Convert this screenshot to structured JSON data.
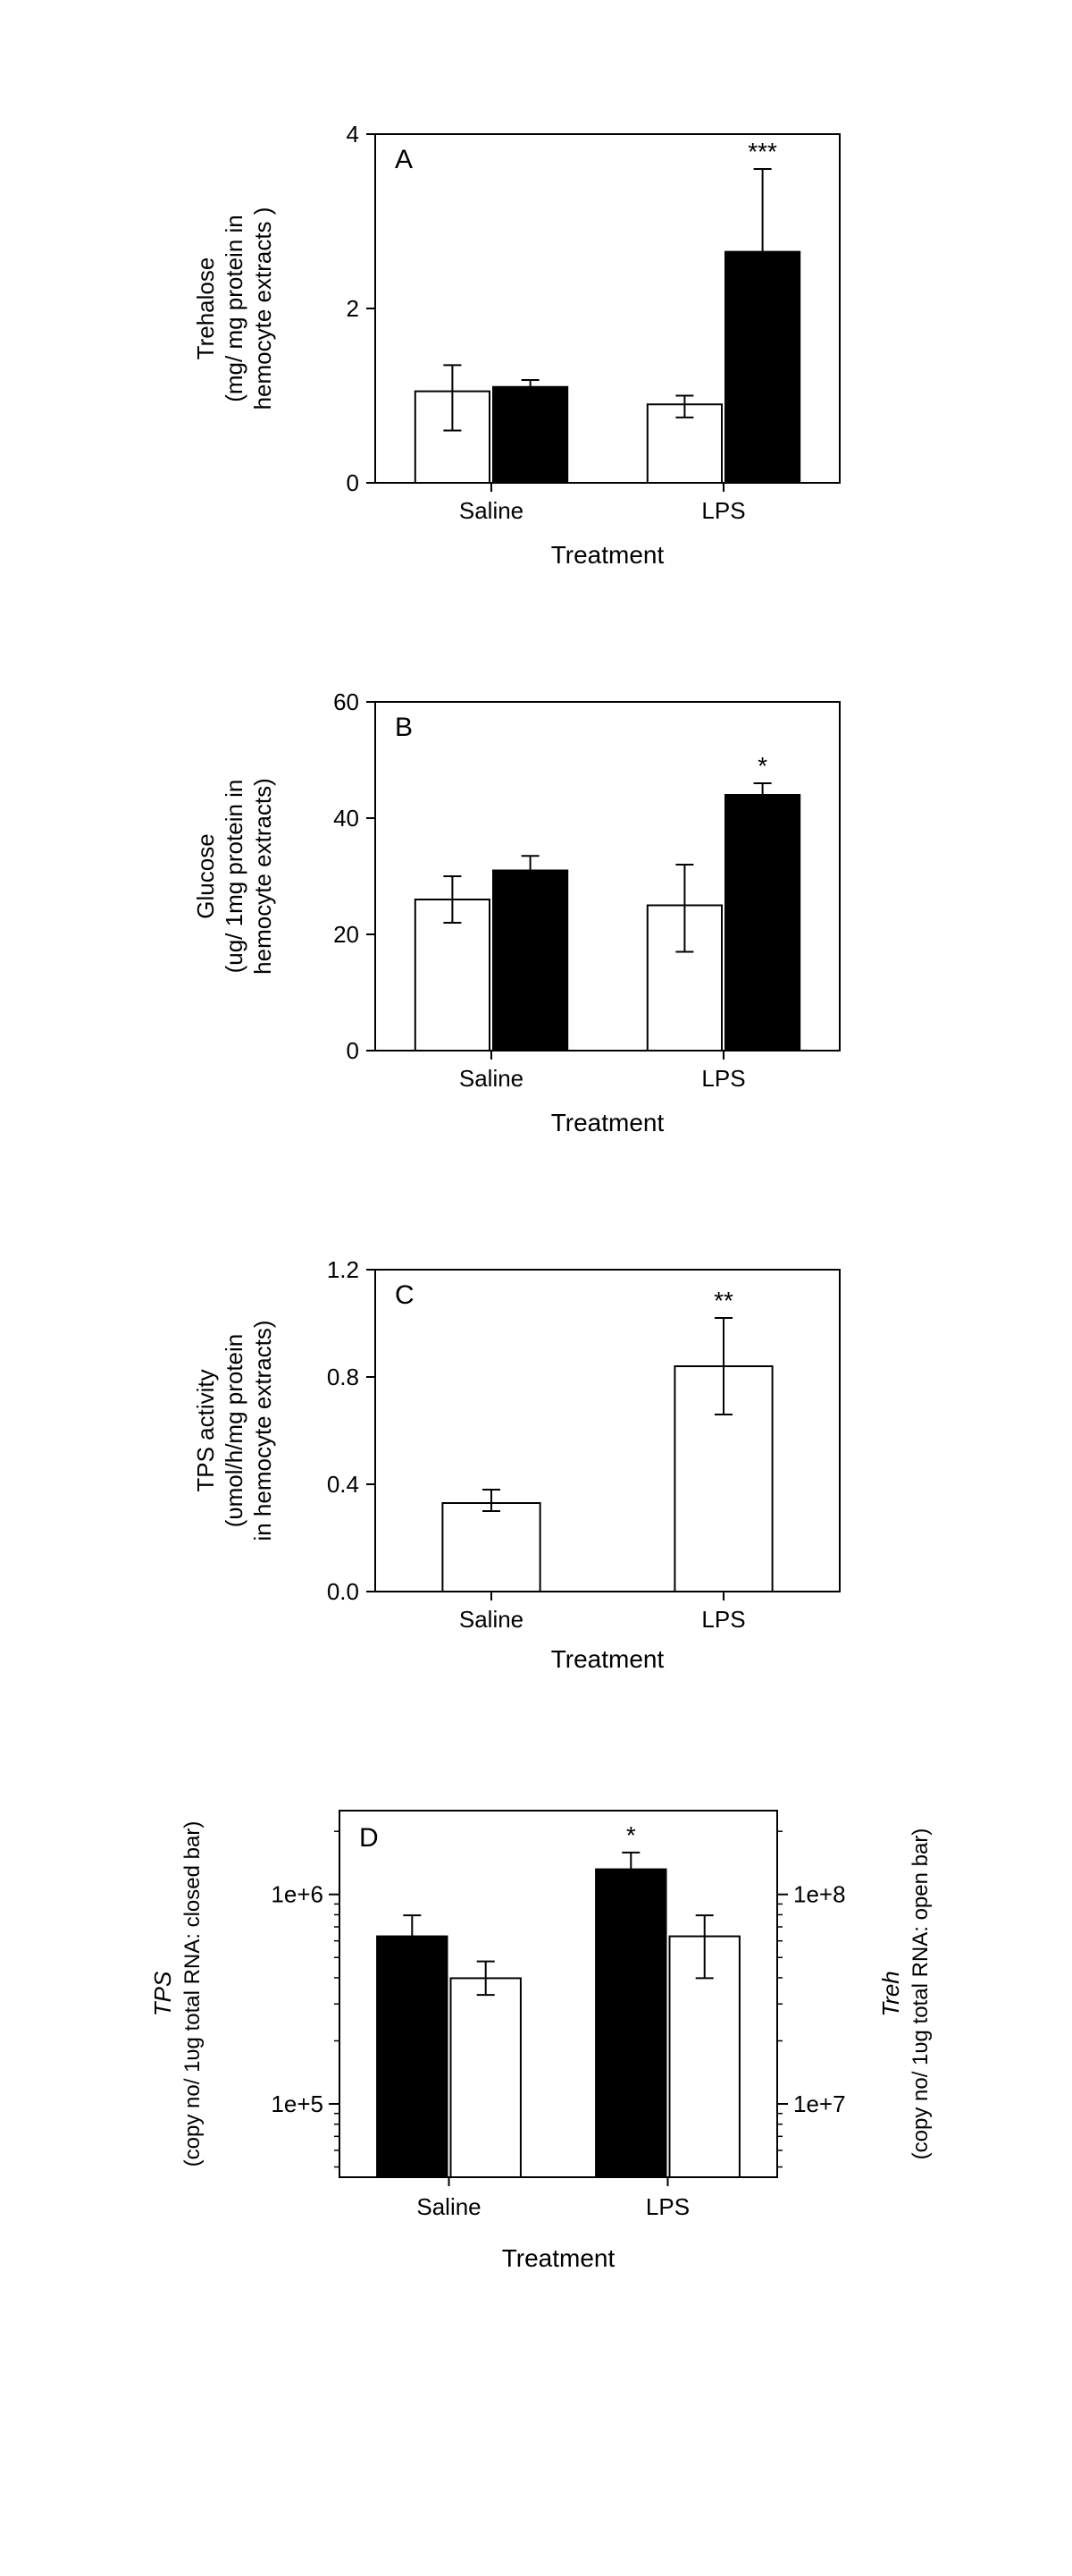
{
  "global": {
    "background": "#ffffff",
    "axis_color": "#000000",
    "font_family": "Arial, Helvetica, sans-serif",
    "xaxis_title": "Treatment",
    "categories": [
      "Saline",
      "LPS"
    ]
  },
  "panelA": {
    "letter": "A",
    "ylabel_line1": "Trehalose",
    "ylabel_line2": "(mg/ mg protein in",
    "ylabel_line3": "hemocyte extracts )",
    "ylim": [
      0,
      4
    ],
    "yticks": [
      0,
      2,
      4
    ],
    "bar_fill_open": "#ffffff",
    "bar_fill_closed": "#000000",
    "bar_border": "#000000",
    "bar_width": 0.32,
    "groups": [
      {
        "cat": "Saline",
        "open": {
          "v": 1.05,
          "err_lo": 0.45,
          "err_hi": 0.3
        },
        "closed": {
          "v": 1.1,
          "err_lo": 0.0,
          "err_hi": 0.08
        }
      },
      {
        "cat": "LPS",
        "open": {
          "v": 0.9,
          "err_lo": 0.15,
          "err_hi": 0.1
        },
        "closed": {
          "v": 2.65,
          "err_lo": 0.0,
          "err_hi": 0.95,
          "sig": "***"
        }
      }
    ],
    "labelfont": 26,
    "letterfont": 30
  },
  "panelB": {
    "letter": "B",
    "ylabel_line1": "Glucose",
    "ylabel_line2": "(ug/ 1mg protein in",
    "ylabel_line3": "hemocyte extracts)",
    "ylim": [
      0,
      60
    ],
    "yticks": [
      0,
      20,
      40,
      60
    ],
    "bar_fill_open": "#ffffff",
    "bar_fill_closed": "#000000",
    "bar_border": "#000000",
    "bar_width": 0.32,
    "groups": [
      {
        "cat": "Saline",
        "open": {
          "v": 26,
          "err_lo": 4,
          "err_hi": 4
        },
        "closed": {
          "v": 31,
          "err_lo": 0,
          "err_hi": 2.5
        }
      },
      {
        "cat": "LPS",
        "open": {
          "v": 25,
          "err_lo": 8,
          "err_hi": 7
        },
        "closed": {
          "v": 44,
          "err_lo": 0,
          "err_hi": 2,
          "sig": "*"
        }
      }
    ],
    "labelfont": 26,
    "letterfont": 30
  },
  "panelC": {
    "letter": "C",
    "ylabel_line1": "TPS activity",
    "ylabel_line2": "(υmol/h/mg protein",
    "ylabel_line3": "in hemocyte extracts)",
    "ylim": [
      0.0,
      1.2
    ],
    "yticks": [
      0.0,
      0.4,
      0.8,
      1.2
    ],
    "bar_fill": "#ffffff",
    "bar_border": "#000000",
    "bar_width": 0.42,
    "bars": [
      {
        "cat": "Saline",
        "v": 0.33,
        "err_lo": 0.03,
        "err_hi": 0.05
      },
      {
        "cat": "LPS",
        "v": 0.84,
        "err_lo": 0.18,
        "err_hi": 0.18,
        "sig": "**"
      }
    ],
    "labelfont": 26,
    "letterfont": 30
  },
  "panelD": {
    "letter": "D",
    "ylabel_left_line1_italic": "TPS",
    "ylabel_left_line2": "(copy no/ 1υg total RNA: closed bar)",
    "ylabel_right_line1_italic": "Treh",
    "ylabel_right_line2": "(copy no/ 1υg total RNA: open bar)",
    "left_yticks_label": [
      "1e+5",
      "1e+6"
    ],
    "left_yticks_logv": [
      5,
      6
    ],
    "left_ylim_logv": [
      4.65,
      6.4
    ],
    "right_yticks_label": [
      "1e+7",
      "1e+8"
    ],
    "right_yticks_logv": [
      7,
      8
    ],
    "right_ylim_logv": [
      6.65,
      8.4
    ],
    "bar_fill_closed": "#000000",
    "bar_fill_open": "#ffffff",
    "bar_border": "#000000",
    "bar_width": 0.32,
    "groups": [
      {
        "cat": "Saline",
        "closed": {
          "logv": 5.8,
          "err_hi": 0.1,
          "err_lo": 0.0
        },
        "open": {
          "logv": 7.6,
          "err_hi": 0.08,
          "err_lo": 0.08
        }
      },
      {
        "cat": "LPS",
        "closed": {
          "logv": 6.12,
          "err_hi": 0.08,
          "err_lo": 0.08,
          "sig": "*"
        },
        "open": {
          "logv": 7.8,
          "err_hi": 0.1,
          "err_lo": 0.2
        }
      }
    ],
    "labelfont": 26,
    "letterfont": 30
  }
}
